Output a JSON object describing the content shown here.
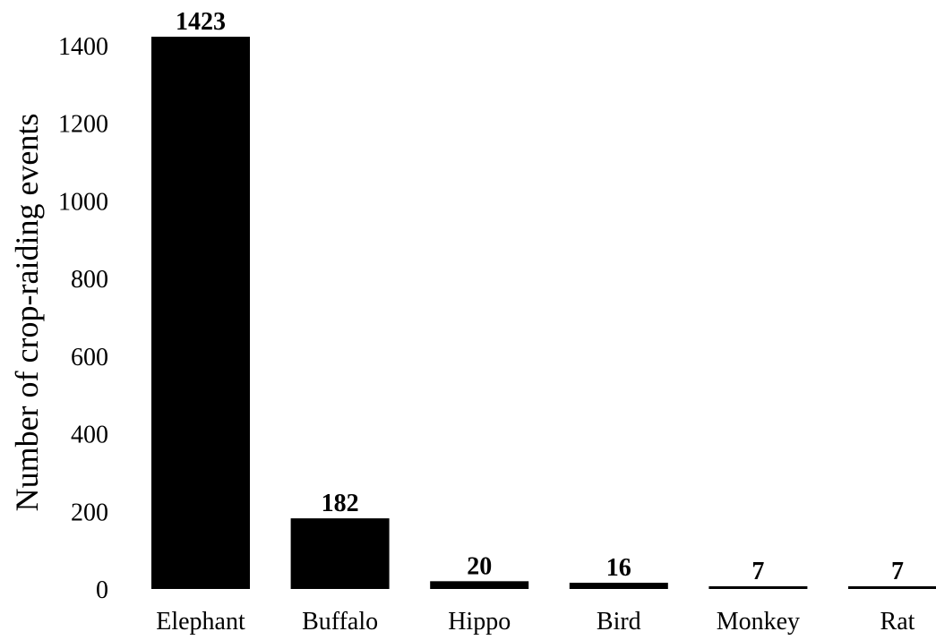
{
  "chart_data": {
    "type": "bar",
    "title": "",
    "xlabel": "",
    "ylabel": "Number of crop-raiding events",
    "categories": [
      "Elephant",
      "Buffalo",
      "Hippo",
      "Bird",
      "Monkey",
      "Rat"
    ],
    "values": [
      1423,
      182,
      20,
      16,
      7,
      7
    ],
    "data_labels": [
      "1423",
      "182",
      "20",
      "16",
      "7",
      "7"
    ],
    "ylim": [
      0,
      1400
    ],
    "yticks": [
      0,
      200,
      400,
      600,
      800,
      1000,
      1200,
      1400
    ],
    "ytick_labels": [
      "0",
      "200",
      "400",
      "600",
      "800",
      "1000",
      "1200",
      "1400"
    ],
    "grid": false,
    "legend": "none",
    "bar_color": "#000000"
  }
}
